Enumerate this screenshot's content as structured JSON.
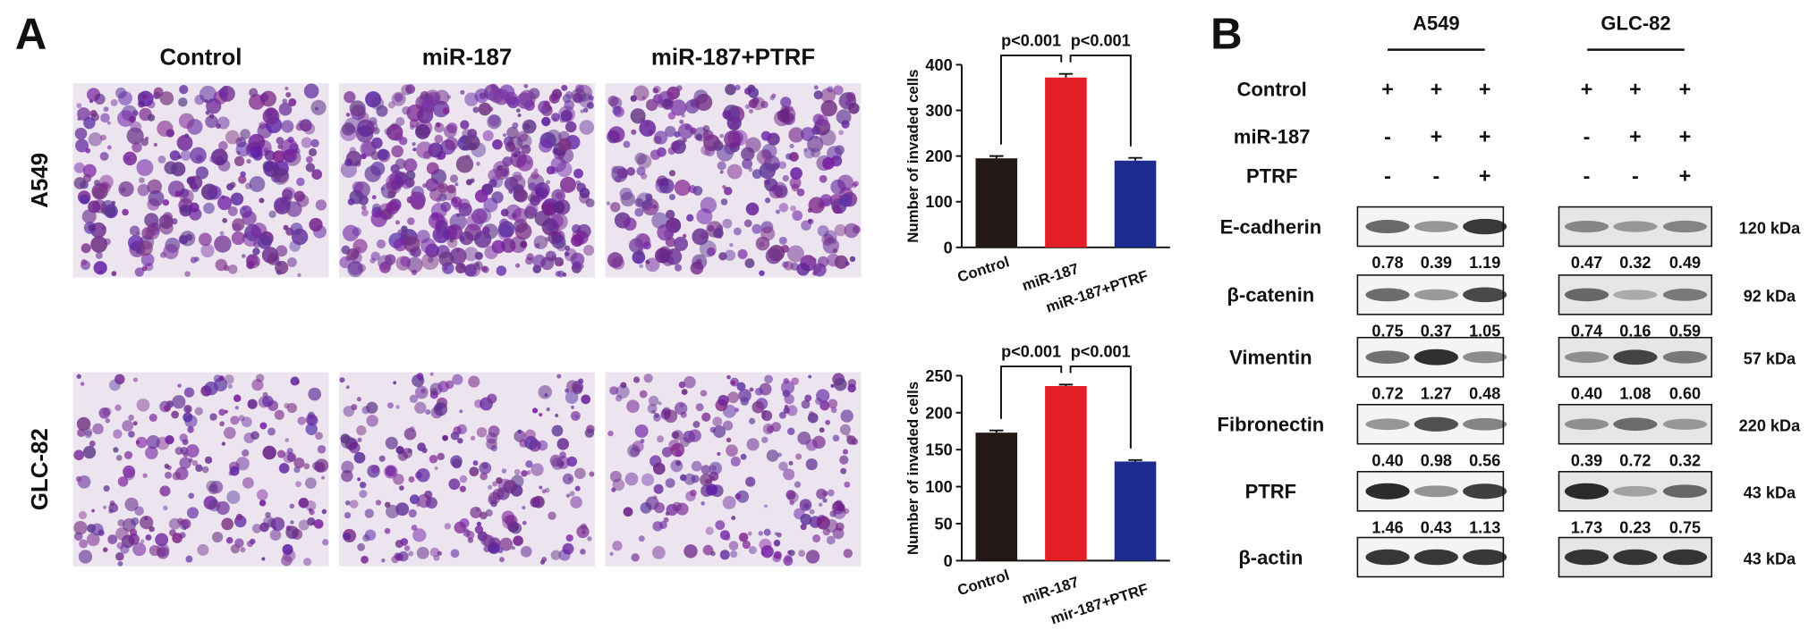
{
  "panel_labels": [
    "A",
    "B"
  ],
  "micrographs": {
    "columns": [
      "Control",
      "miR-187",
      "miR-187+PTRF"
    ],
    "rows": [
      "A549",
      "GLC-82"
    ]
  },
  "chart_data": [
    {
      "type": "bar",
      "ylabel": "Number of invaded cells",
      "categories": [
        "Control",
        "miR-187",
        "miR-187+PTRF"
      ],
      "values": [
        195,
        372,
        190
      ],
      "errors": [
        5,
        8,
        6
      ],
      "colors": [
        "#231815",
        "#e31e24",
        "#1b2c8e"
      ],
      "ylim": [
        0,
        400
      ],
      "yticks": [
        0,
        100,
        200,
        300,
        400
      ],
      "annotations": [
        "p<0.001",
        "p<0.001"
      ]
    },
    {
      "type": "bar",
      "ylabel": "Number of invaded cells",
      "categories": [
        "Control",
        "miR-187",
        "mir-187+PTRF"
      ],
      "values": [
        173,
        236,
        134
      ],
      "errors": [
        3,
        2,
        2
      ],
      "colors": [
        "#231815",
        "#e31e24",
        "#1b2c8e"
      ],
      "ylim": [
        0,
        250
      ],
      "yticks": [
        0,
        50,
        100,
        150,
        200,
        250
      ],
      "annotations": [
        "p<0.001",
        "p<0.001"
      ]
    }
  ],
  "western_blot": {
    "cell_lines": [
      "A549",
      "GLC-82"
    ],
    "conditions": [
      {
        "name": "Control",
        "signs": [
          [
            "+",
            "+",
            "+"
          ],
          [
            "+",
            "+",
            "+"
          ]
        ]
      },
      {
        "name": "miR-187",
        "signs": [
          [
            "-",
            "+",
            "+"
          ],
          [
            "-",
            "+",
            "+"
          ]
        ]
      },
      {
        "name": "PTRF",
        "signs": [
          [
            "-",
            "-",
            "+"
          ],
          [
            "-",
            "-",
            "+"
          ]
        ]
      }
    ],
    "proteins": [
      {
        "name": "E-cadherin",
        "size": "120 kDa",
        "ratios": [
          [
            "0.78",
            "0.39",
            "1.19"
          ],
          [
            "0.47",
            "0.32",
            "0.49"
          ]
        ]
      },
      {
        "name": "β-catenin",
        "size": "92 kDa",
        "ratios": [
          [
            "0.75",
            "0.37",
            "1.05"
          ],
          [
            "0.74",
            "0.16",
            "0.59"
          ]
        ]
      },
      {
        "name": "Vimentin",
        "size": "57 kDa",
        "ratios": [
          [
            "0.72",
            "1.27",
            "0.48"
          ],
          [
            "0.40",
            "1.08",
            "0.60"
          ]
        ]
      },
      {
        "name": "Fibronectin",
        "size": "220 kDa",
        "ratios": [
          [
            "0.40",
            "0.98",
            "0.56"
          ],
          [
            "0.39",
            "0.72",
            "0.32"
          ]
        ]
      },
      {
        "name": "PTRF",
        "size": "43 kDa",
        "ratios": [
          [
            "1.46",
            "0.43",
            "1.13"
          ],
          [
            "1.73",
            "0.23",
            "0.75"
          ]
        ]
      },
      {
        "name": "β-actin",
        "size": "43 kDa"
      }
    ]
  }
}
